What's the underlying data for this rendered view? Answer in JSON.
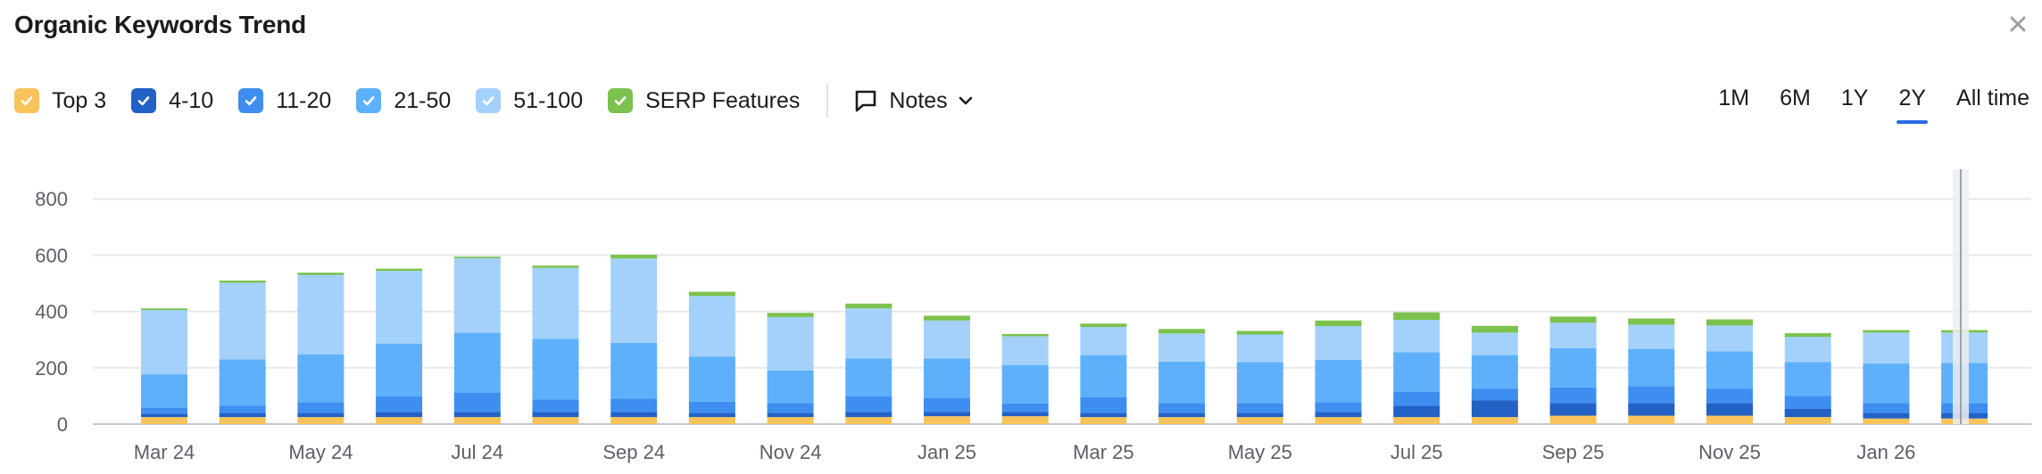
{
  "header": {
    "title": "Organic Keywords Trend"
  },
  "legend": [
    {
      "label": "Top 3",
      "color": "#f7c35a"
    },
    {
      "label": "4-10",
      "color": "#2262c6"
    },
    {
      "label": "11-20",
      "color": "#3d8ef0"
    },
    {
      "label": "21-50",
      "color": "#5eb0fb"
    },
    {
      "label": "51-100",
      "color": "#a3d1fc"
    },
    {
      "label": "SERP Features",
      "color": "#7cc24e"
    }
  ],
  "notes_label": "Notes",
  "periods": [
    {
      "label": "1M",
      "active": false
    },
    {
      "label": "6M",
      "active": false
    },
    {
      "label": "1Y",
      "active": false
    },
    {
      "label": "2Y",
      "active": true
    },
    {
      "label": "All time",
      "active": false
    }
  ],
  "icons": {
    "close": "close-icon",
    "checkbox": "check-icon",
    "notes": "comment-icon",
    "dropdown": "chevron-down-icon"
  },
  "chart_data": {
    "type": "bar",
    "stacked": true,
    "title": "",
    "xlabel": "",
    "ylabel": "",
    "ylim": [
      0,
      880
    ],
    "yticks": [
      0,
      200,
      400,
      600,
      800
    ],
    "grid": true,
    "x_tick_labels": [
      "Mar 24",
      "May 24",
      "Jul 24",
      "Sep 24",
      "Nov 24",
      "Jan 25",
      "Mar 25",
      "May 25",
      "Jul 25",
      "Sep 25",
      "Nov 25",
      "Jan 26"
    ],
    "categories": [
      "Mar 24",
      "Apr 24",
      "May 24",
      "Jun 24",
      "Jul 24",
      "Aug 24",
      "Sep 24",
      "Oct 24",
      "Nov 24",
      "Dec 24",
      "Jan 25",
      "Feb 25",
      "Mar 25",
      "Apr 25",
      "May 25",
      "Jun 25",
      "Jul 25",
      "Aug 25",
      "Sep 25",
      "Oct 25",
      "Nov 25",
      "Dec 25",
      "Jan 26",
      "Feb 26"
    ],
    "series": [
      {
        "name": "Top 3",
        "color": "#f7c35a",
        "values": [
          25,
          25,
          25,
          25,
          25,
          25,
          25,
          25,
          25,
          25,
          28,
          28,
          25,
          25,
          25,
          25,
          25,
          25,
          30,
          30,
          30,
          25,
          20,
          20
        ]
      },
      {
        "name": "4-10",
        "color": "#2262c6",
        "values": [
          12,
          15,
          15,
          18,
          18,
          18,
          18,
          15,
          15,
          18,
          15,
          15,
          15,
          15,
          15,
          18,
          40,
          60,
          45,
          45,
          45,
          30,
          20,
          20
        ]
      },
      {
        "name": "11-20",
        "color": "#3d8ef0",
        "values": [
          20,
          25,
          38,
          55,
          70,
          45,
          48,
          40,
          35,
          55,
          50,
          30,
          55,
          35,
          35,
          35,
          50,
          40,
          55,
          60,
          50,
          45,
          35,
          35
        ]
      },
      {
        "name": "21-50",
        "color": "#5eb0fb",
        "values": [
          120,
          165,
          170,
          188,
          212,
          215,
          197,
          160,
          115,
          135,
          140,
          137,
          150,
          147,
          145,
          150,
          140,
          120,
          140,
          132,
          133,
          120,
          140,
          142
        ]
      },
      {
        "name": "51-100",
        "color": "#a3d1fc",
        "values": [
          228,
          272,
          282,
          258,
          265,
          252,
          300,
          215,
          190,
          178,
          135,
          102,
          100,
          100,
          98,
          120,
          115,
          80,
          90,
          86,
          92,
          90,
          110,
          108
        ]
      },
      {
        "name": "SERP Features",
        "color": "#7cc24e",
        "values": [
          6,
          8,
          8,
          8,
          5,
          8,
          14,
          15,
          15,
          17,
          17,
          8,
          12,
          16,
          13,
          20,
          27,
          24,
          22,
          22,
          22,
          13,
          9,
          9
        ]
      }
    ]
  }
}
